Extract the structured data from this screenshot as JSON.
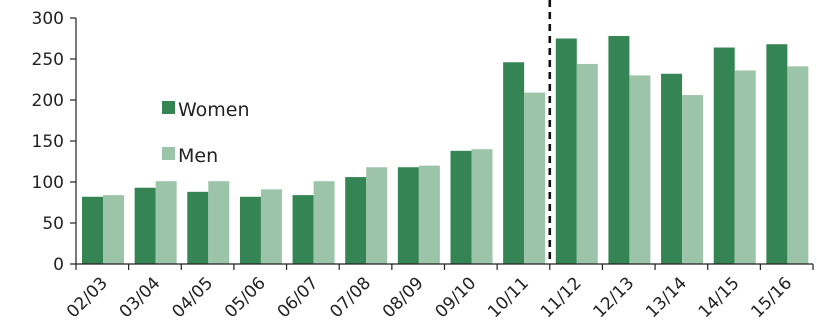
{
  "chart_data": {
    "type": "bar",
    "title": "",
    "xlabel": "",
    "ylabel": "",
    "ylim": [
      0,
      300
    ],
    "yticks": [
      0,
      50,
      100,
      150,
      200,
      250,
      300
    ],
    "grid": false,
    "legend_position": "left-center",
    "categories": [
      "02/03",
      "03/04",
      "04/05",
      "05/06",
      "06/07",
      "07/08",
      "08/09",
      "09/10",
      "10/11",
      "11/12",
      "12/13",
      "13/14",
      "14/15",
      "15/16"
    ],
    "series": [
      {
        "name": "Women",
        "color": "#358454",
        "values": [
          82,
          93,
          88,
          82,
          84,
          106,
          118,
          138,
          246,
          275,
          278,
          232,
          264,
          268
        ]
      },
      {
        "name": "Men",
        "color": "#9cc4a8",
        "values": [
          84,
          101,
          101,
          91,
          101,
          118,
          120,
          140,
          209,
          244,
          230,
          206,
          236,
          241
        ]
      }
    ],
    "annotations": [
      {
        "type": "vertical-dashed-line",
        "between": [
          "10/11",
          "11/12"
        ],
        "color": "#111111"
      }
    ]
  }
}
